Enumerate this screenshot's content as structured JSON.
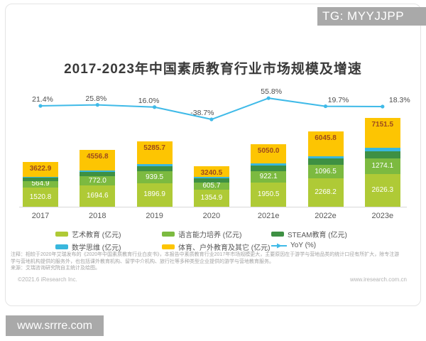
{
  "watermarks": {
    "tg": "TG: MYYJJPP",
    "site": "www.srrre.com"
  },
  "title": "2017-2023年中国素质教育行业市场规模及增速",
  "chart_data": {
    "type": "bar",
    "stacked": true,
    "unit": "亿元",
    "categories": [
      "2017",
      "2018",
      "2019",
      "2020",
      "2021e",
      "2022e",
      "2023e"
    ],
    "totals": [
      3622.9,
      4556.8,
      5285.7,
      3240.5,
      5050.0,
      6045.8,
      7151.5
    ],
    "total_labels_shown": true,
    "series": [
      {
        "name": "艺术教育 (亿元)",
        "color": "#afca36",
        "show_labels": true,
        "values": [
          1520.8,
          1694.6,
          1896.9,
          1354.9,
          1950.5,
          2268.2,
          2626.3
        ]
      },
      {
        "name": "语言能力培养 (亿元)",
        "color": "#7cba40",
        "show_labels": true,
        "values": [
          564.9,
          772.0,
          939.5,
          605.7,
          922.1,
          1096.5,
          1274.1
        ]
      },
      {
        "name": "STEAM教育 (亿元)",
        "color": "#3e9043",
        "show_labels": false,
        "estimated": true,
        "values": [
          260,
          350,
          430,
          300,
          420,
          500,
          580
        ]
      },
      {
        "name": "数学思维 (亿元)",
        "color": "#39b7dd",
        "show_labels": false,
        "estimated": true,
        "values": [
          30,
          90,
          150,
          130,
          180,
          220,
          260
        ]
      },
      {
        "name": "体育、户外教育及其它 (亿元)",
        "color": "#fdc502",
        "show_labels": false,
        "estimated": true,
        "values": [
          1247.2,
          1650.2,
          1869.3,
          849.9,
          1577.4,
          1961.1,
          2411.1
        ]
      }
    ],
    "line": {
      "name": "YoY (%)",
      "color": "#3fbae8",
      "values": [
        21.4,
        25.8,
        16.0,
        -38.7,
        55.8,
        19.7,
        18.3
      ]
    },
    "colors": {
      "total_label": "#9c4a1e",
      "segment_label": "#ffffff",
      "axis_label": "#595959",
      "yoy_label": "#4c4c4c"
    },
    "legend_position": "bottom",
    "grid": false
  },
  "notes": [
    "注释：相较于2020年艾瑞发布的《2020年中国素质教育行业白皮书》，本报告中素质教育行业2017年市场规模更大，主要原因在于游学与营地品类的统计口径有所扩大，除专注游",
    "学与营地机构提供的服务外，也包括课外教育机构、留学中介机构、旅行社等多种类型企业提供的游学与营地教育服务。",
    "来源：艾瑞咨询研究院自主统计及绘图。"
  ],
  "footer": {
    "left": "©2021.6 iResearch Inc.",
    "right": "www.iresearch.com.cn"
  }
}
